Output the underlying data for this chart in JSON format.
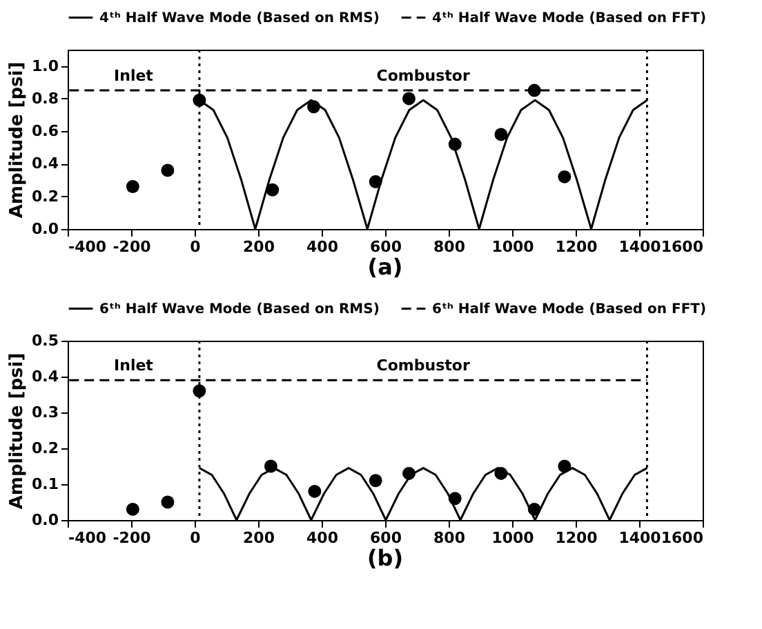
{
  "chart_data": [
    {
      "type": "line",
      "title": "(a)",
      "ylabel": "Amplitude [psi]",
      "xlim": [
        -400,
        1600
      ],
      "xticks": [
        -400,
        -200,
        0,
        200,
        400,
        600,
        800,
        1000,
        1200,
        1400,
        1600
      ],
      "ylim": [
        0,
        1.1
      ],
      "yticks": [
        {
          "value": 0,
          "label": "0.0"
        },
        {
          "value": 0.2,
          "label": "0.2"
        },
        {
          "value": 0.4,
          "label": "0.4"
        },
        {
          "value": 0.6,
          "label": "0.6"
        },
        {
          "value": 0.8,
          "label": "0.8"
        },
        {
          "value": 1.0,
          "label": "1.0"
        }
      ],
      "grid": false,
      "legend": "top",
      "series": [
        {
          "name": "4ᵗʰ Half Wave Mode (Based on RMS)",
          "color": "#000000",
          "line_style": "solid",
          "x": [
            15,
            59,
            103,
            147,
            191,
            235,
            279,
            323,
            367,
            411,
            455,
            499,
            544,
            588,
            632,
            676,
            720,
            764,
            808,
            852,
            896,
            940,
            984,
            1028,
            1072,
            1116,
            1160,
            1204,
            1249,
            1293,
            1337,
            1381,
            1425
          ],
          "values": [
            0.79,
            0.73,
            0.56,
            0.3,
            0,
            0.3,
            0.56,
            0.73,
            0.79,
            0.73,
            0.56,
            0.3,
            0,
            0.3,
            0.56,
            0.73,
            0.79,
            0.73,
            0.56,
            0.3,
            0,
            0.3,
            0.56,
            0.73,
            0.79,
            0.73,
            0.56,
            0.3,
            0,
            0.3,
            0.56,
            0.73,
            0.79
          ]
        },
        {
          "name": "4ᵗʰ Half Wave Mode (Based on FFT)",
          "color": "#000000",
          "line_style": "dashed",
          "x": [
            -395,
            15,
            1425
          ],
          "values": [
            0.85,
            0.85,
            0.85
          ]
        },
        {
          "type": "scatter",
          "color": "#000000",
          "marker": "circle",
          "x": [
            -195,
            -85,
            15,
            245,
            375,
            570,
            675,
            820,
            965,
            1070,
            1165
          ],
          "values": [
            0.26,
            0.36,
            0.79,
            0.24,
            0.75,
            0.29,
            0.8,
            0.52,
            0.58,
            0.85,
            0.32
          ]
        }
      ],
      "ref_lines": [
        {
          "axis": "x",
          "value": 15,
          "color": "#000000",
          "line_style": "dotted"
        },
        {
          "axis": "x",
          "value": 1425,
          "color": "#000000",
          "line_style": "dotted"
        }
      ],
      "annotations": [
        "Inlet",
        "Combustor"
      ]
    },
    {
      "type": "line",
      "title": "(b)",
      "ylabel": "Amplitude [psi]",
      "xlim": [
        -400,
        1600
      ],
      "xticks": [
        -400,
        -200,
        0,
        200,
        400,
        600,
        800,
        1000,
        1200,
        1400,
        1600
      ],
      "ylim": [
        0,
        0.5
      ],
      "yticks": [
        {
          "value": 0,
          "label": "0.0"
        },
        {
          "value": 0.1,
          "label": "0.1"
        },
        {
          "value": 0.2,
          "label": "0.2"
        },
        {
          "value": 0.3,
          "label": "0.3"
        },
        {
          "value": 0.4,
          "label": "0.4"
        },
        {
          "value": 0.5,
          "label": "0.5"
        }
      ],
      "grid": false,
      "legend": "top",
      "series": [
        {
          "name": "6ᵗʰ Half Wave Mode (Based on RMS)",
          "color": "#000000",
          "line_style": "solid",
          "x": [
            15,
            54,
            93,
            132,
            172,
            211,
            250,
            289,
            328,
            367,
            407,
            446,
            485,
            524,
            563,
            602,
            642,
            681,
            720,
            759,
            798,
            837,
            877,
            916,
            955,
            994,
            1033,
            1072,
            1112,
            1151,
            1190,
            1229,
            1268,
            1307,
            1347,
            1386,
            1425
          ],
          "values": [
            0.145,
            0.126,
            0.073,
            0,
            0.073,
            0.126,
            0.145,
            0.126,
            0.073,
            0,
            0.073,
            0.126,
            0.145,
            0.126,
            0.073,
            0,
            0.073,
            0.126,
            0.145,
            0.126,
            0.073,
            0,
            0.073,
            0.126,
            0.145,
            0.126,
            0.073,
            0,
            0.073,
            0.126,
            0.145,
            0.126,
            0.073,
            0,
            0.073,
            0.126,
            0.145
          ]
        },
        {
          "name": "6ᵗʰ Half Wave Mode (Based on FFT)",
          "color": "#000000",
          "line_style": "dashed",
          "x": [
            -395,
            15,
            1425
          ],
          "values": [
            0.39,
            0.39,
            0.39
          ]
        },
        {
          "type": "scatter",
          "color": "#000000",
          "marker": "circle",
          "x": [
            -195,
            -85,
            15,
            240,
            378,
            570,
            675,
            820,
            965,
            1070,
            1165
          ],
          "values": [
            0.03,
            0.05,
            0.36,
            0.15,
            0.08,
            0.11,
            0.13,
            0.06,
            0.13,
            0.03,
            0.15
          ]
        }
      ],
      "ref_lines": [
        {
          "axis": "x",
          "value": 15,
          "color": "#000000",
          "line_style": "dotted"
        },
        {
          "axis": "x",
          "value": 1425,
          "color": "#000000",
          "line_style": "dotted"
        }
      ],
      "annotations": [
        "Inlet",
        "Combustor"
      ]
    }
  ]
}
